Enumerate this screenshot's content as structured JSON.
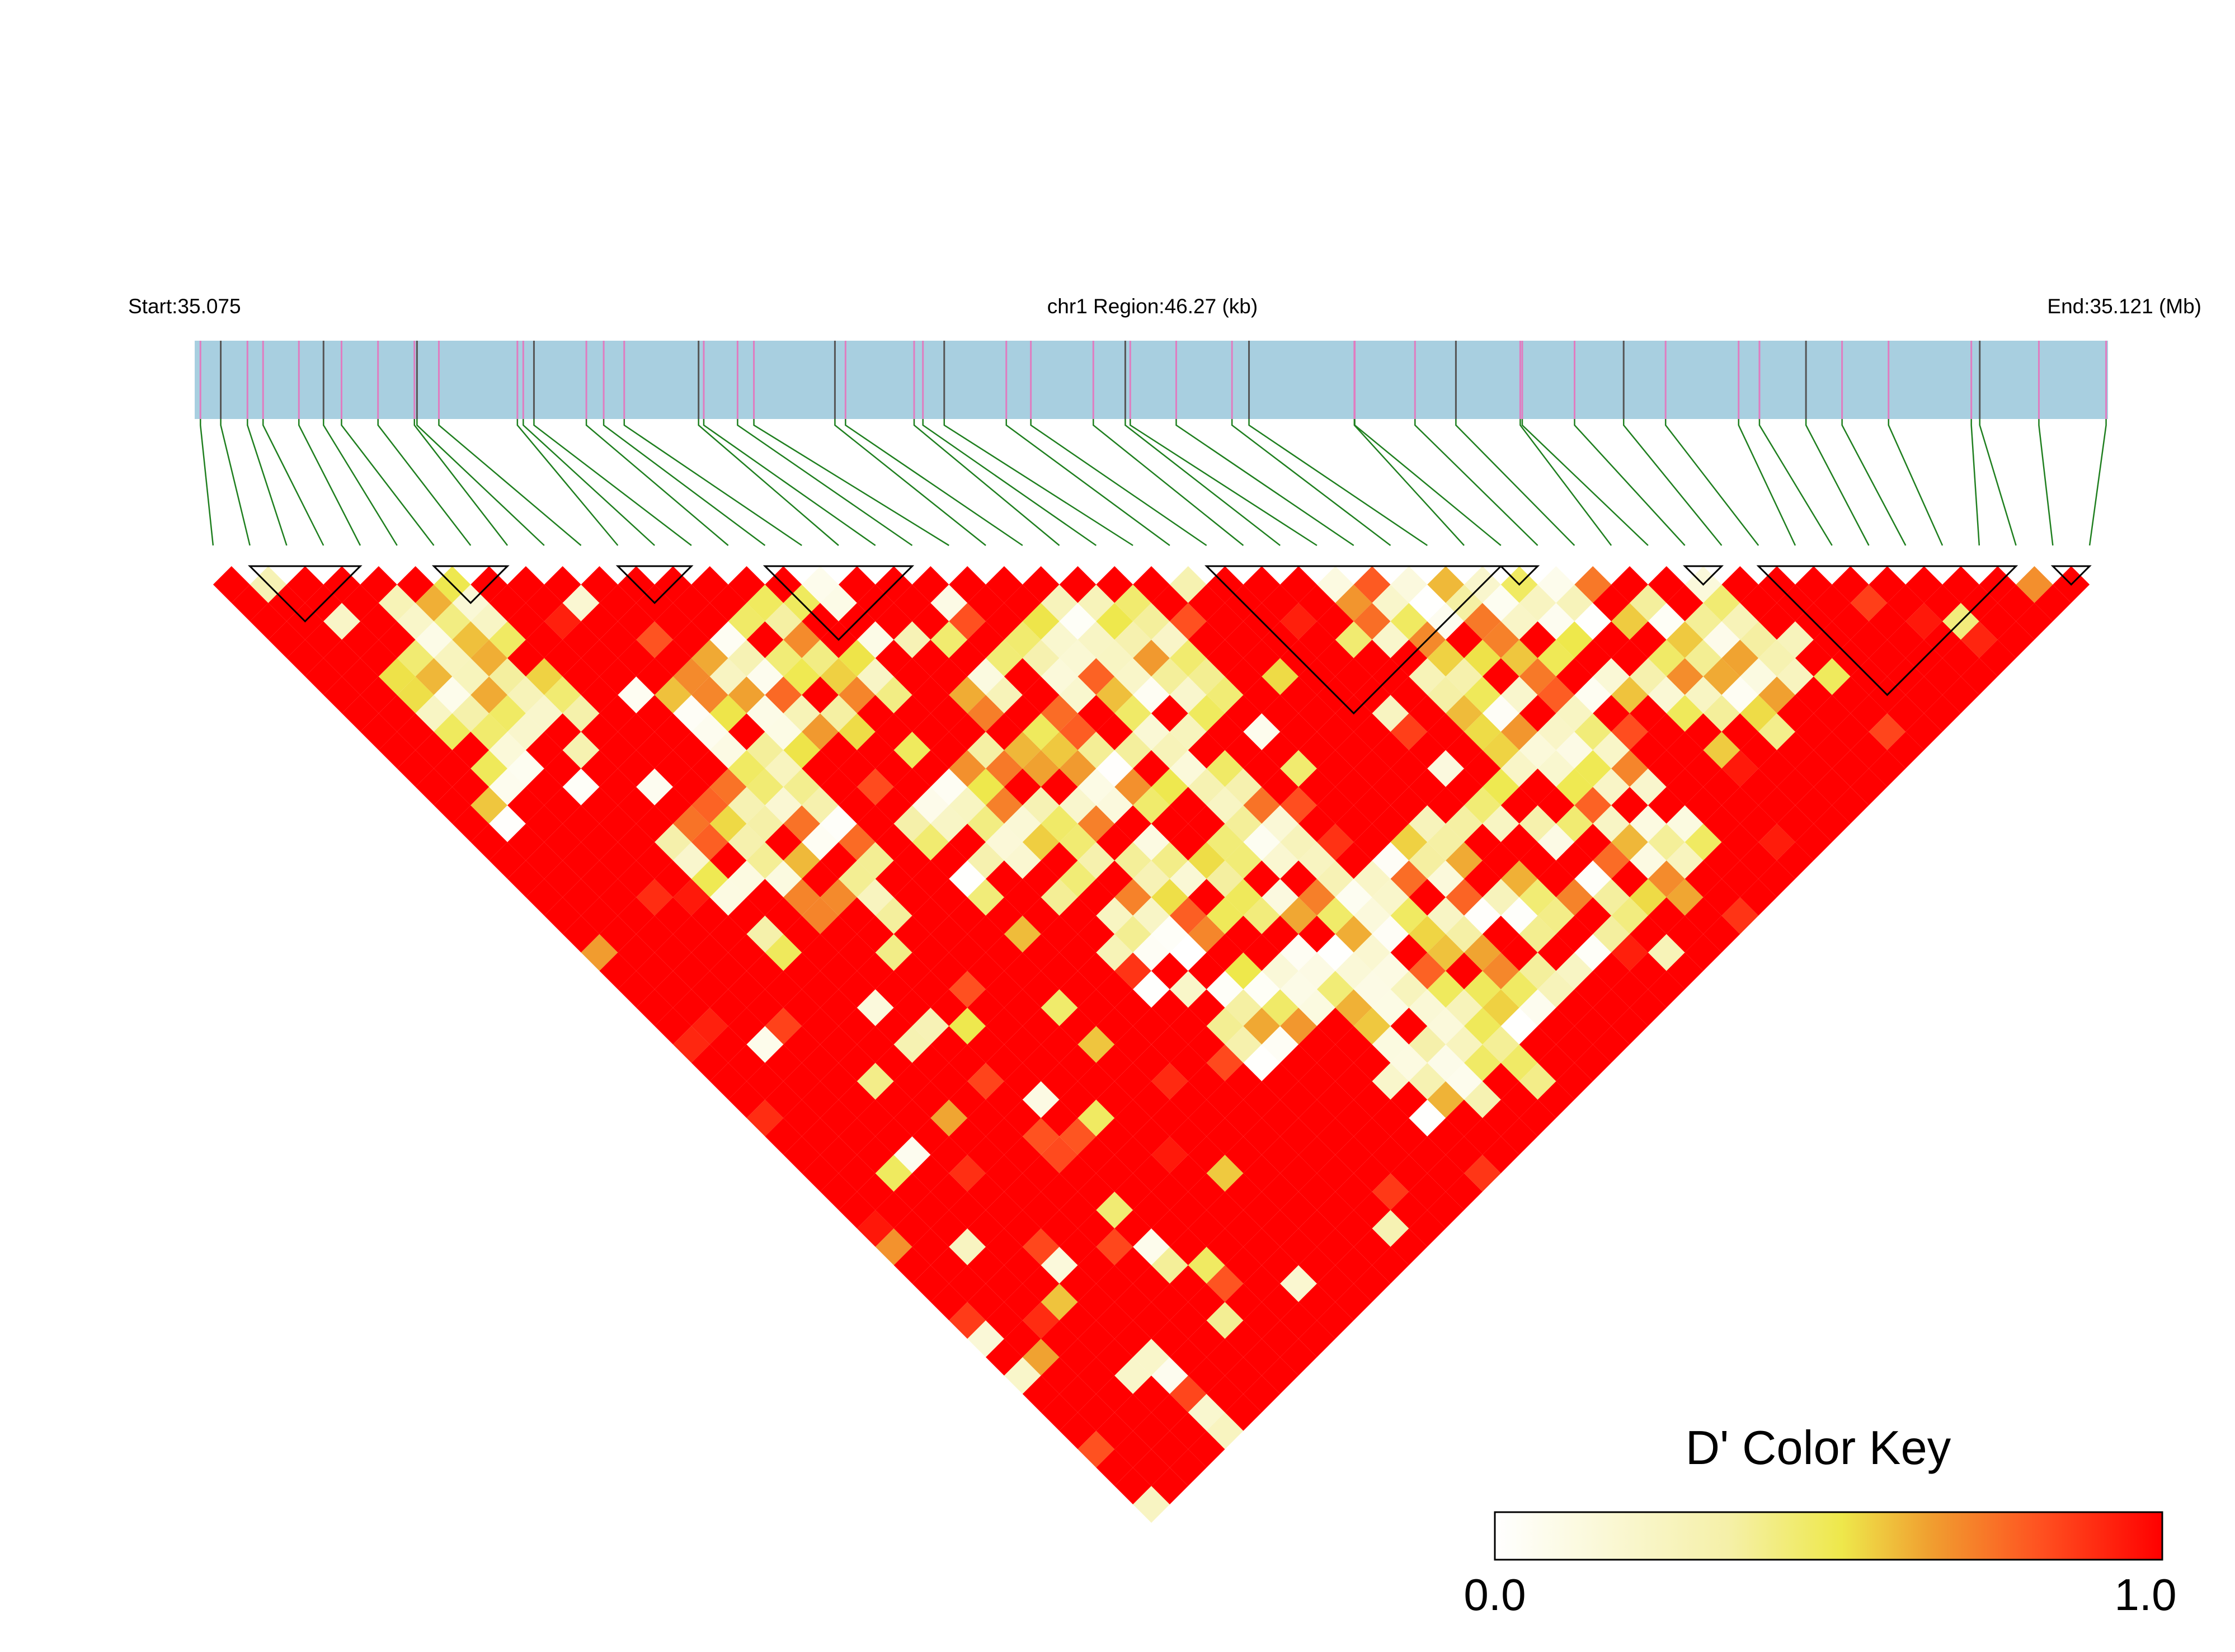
{
  "header": {
    "start_label": "Start:35.075",
    "region_label": "chr1 Region:46.27 (kb)",
    "end_label": "End:35.121 (Mb)"
  },
  "colors": {
    "region_bar": "#a8cfe0",
    "snp_tick_pink": "#e07cc0",
    "snp_tick_dark": "#555555",
    "connector": "#1f7f1f",
    "block_outline": "#000000",
    "gradient_low": "#ffffff",
    "gradient_mid": "#eee84b",
    "gradient_orange": "#f0a030",
    "gradient_high": "#ff0000"
  },
  "chart_data": {
    "type": "heatmap",
    "description_of_values": "pairwise D' between SNPs",
    "n_snps": 52,
    "region": {
      "chromosome": "chr1",
      "start_mb": 35.075,
      "end_mb": 35.121,
      "length_kb": 46.27
    },
    "haplotype_blocks": [
      [
        1,
        4
      ],
      [
        6,
        8
      ],
      [
        11,
        13
      ],
      [
        15,
        19
      ],
      [
        27,
        35
      ],
      [
        35,
        36
      ],
      [
        40,
        41
      ],
      [
        42,
        49
      ],
      [
        50,
        51
      ]
    ],
    "d_prime_matrix_note": "most pairs ~1.0 (red); low values clustered in several regions",
    "color_key": {
      "title": "D' Color Key",
      "min": 0.0,
      "max": 1.0,
      "min_label": "0.0",
      "max_label": "1.0"
    }
  }
}
